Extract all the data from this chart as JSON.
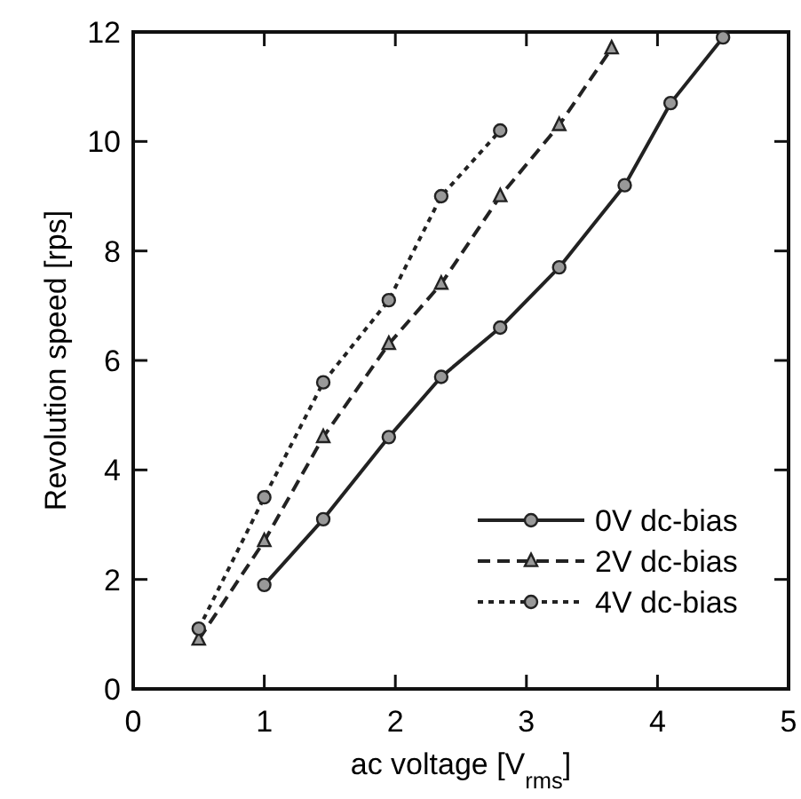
{
  "chart_data": {
    "type": "line",
    "xlabel": "ac voltage [V$_{rms}$]",
    "ylabel": "Revolution speed  [rps]",
    "xlim": [
      0,
      5
    ],
    "xticks": [
      0,
      1,
      2,
      3,
      4,
      5
    ],
    "ylim": [
      0,
      12
    ],
    "yticks": [
      0,
      2,
      4,
      6,
      8,
      10,
      12
    ],
    "grid": false,
    "legend": "bottom right",
    "series": [
      {
        "name": "0V  dc-bias",
        "color": "#222222",
        "marker": "circle",
        "line_style": "solid",
        "x": [
          1.0,
          1.45,
          1.95,
          2.35,
          2.8,
          3.25,
          3.75,
          4.1,
          4.5
        ],
        "values": [
          1.9,
          3.1,
          4.6,
          5.7,
          6.6,
          7.7,
          9.2,
          10.7,
          11.9
        ]
      },
      {
        "name": "2V  dc-bias",
        "color": "#222222",
        "marker": "triangle",
        "line_style": "dashed",
        "x": [
          0.5,
          1.0,
          1.45,
          1.95,
          2.35,
          2.8,
          3.25,
          3.65
        ],
        "values": [
          0.9,
          2.7,
          4.6,
          6.3,
          7.4,
          9.0,
          10.3,
          11.7
        ]
      },
      {
        "name": "4V  dc-bias",
        "color": "#222222",
        "marker": "circle",
        "line_style": "dotted",
        "x": [
          0.5,
          1.0,
          1.45,
          1.95,
          2.35,
          2.8
        ],
        "values": [
          1.1,
          3.5,
          5.6,
          7.1,
          9.0,
          10.2
        ]
      }
    ]
  }
}
